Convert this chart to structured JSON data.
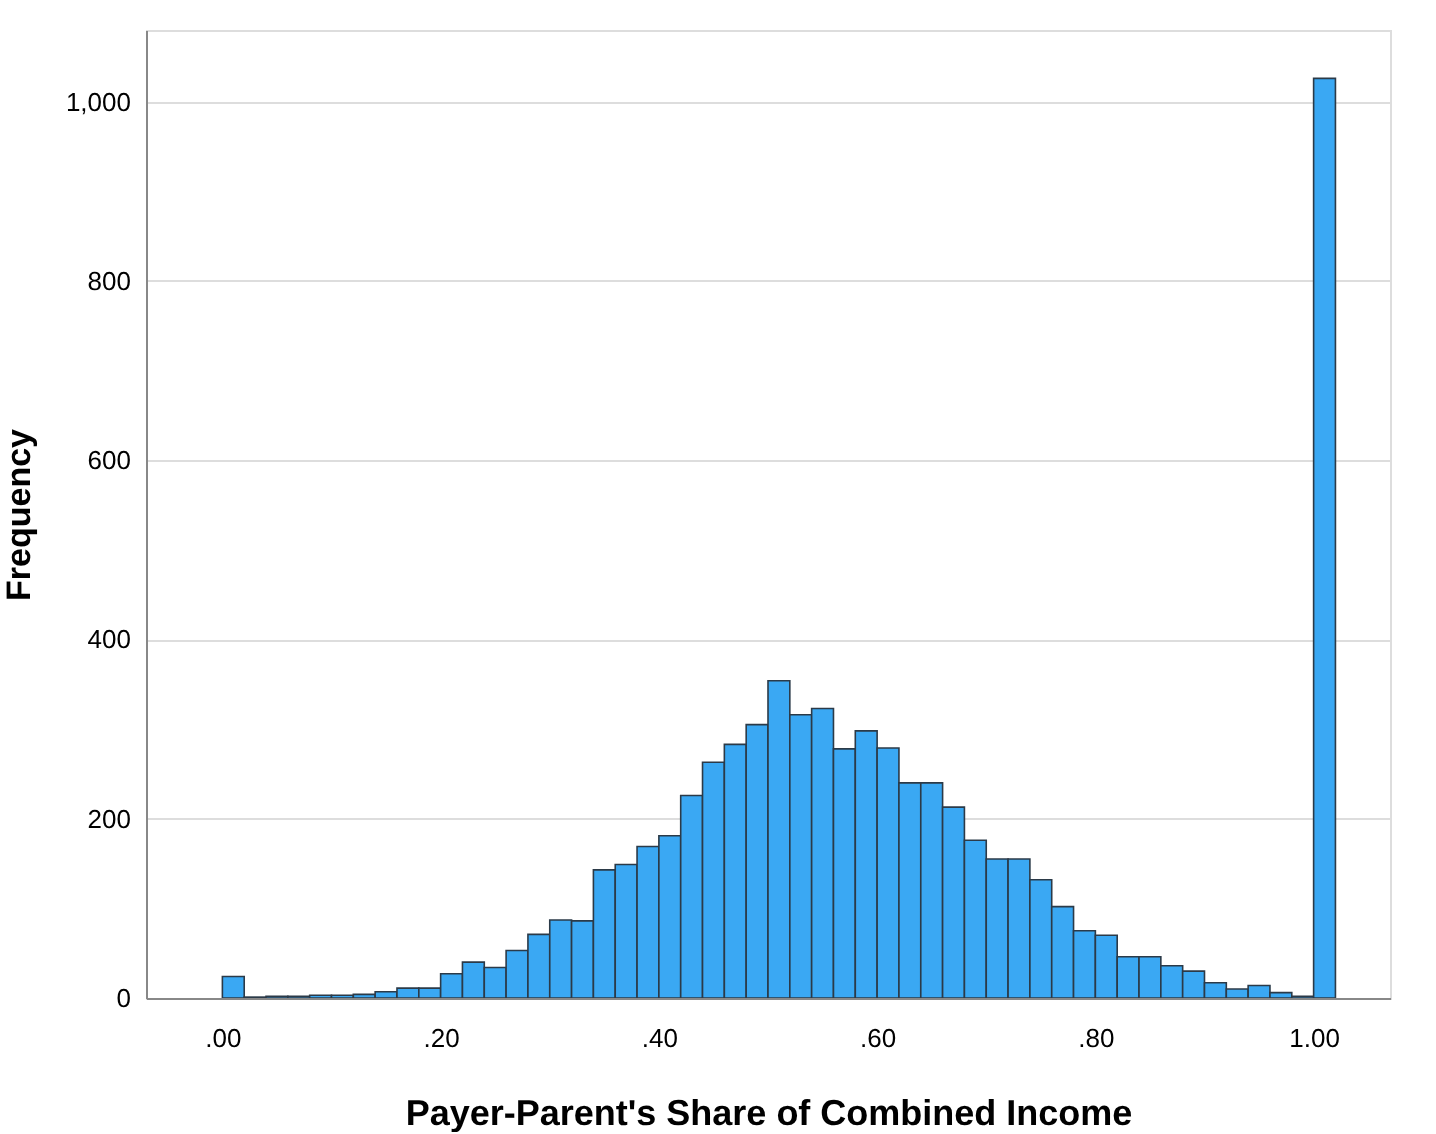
{
  "chart_data": {
    "type": "histogram",
    "xlabel": "Payer-Parent's Share of Combined Income",
    "ylabel": "Frequency",
    "bins": [
      0,
      0.02,
      0.04,
      0.06,
      0.08,
      0.1,
      0.12,
      0.14,
      0.16,
      0.18,
      0.2,
      0.22,
      0.24,
      0.26,
      0.28,
      0.3,
      0.32,
      0.34,
      0.36,
      0.38,
      0.4,
      0.42,
      0.44,
      0.46,
      0.48,
      0.5,
      0.52,
      0.54,
      0.56,
      0.58,
      0.6,
      0.62,
      0.64,
      0.66,
      0.68,
      0.7,
      0.72,
      0.74,
      0.76,
      0.78,
      0.8,
      0.82,
      0.84,
      0.86,
      0.88,
      0.9,
      0.92,
      0.94,
      0.96,
      0.98,
      1.0,
      1.02
    ],
    "values": [
      24,
      1,
      2,
      2,
      3,
      3,
      4,
      7,
      11,
      11,
      27,
      40,
      34,
      53,
      71,
      87,
      86,
      143,
      149,
      169,
      181,
      226,
      263,
      283,
      305,
      354,
      316,
      323,
      278,
      298,
      279,
      240,
      240,
      213,
      176,
      155,
      155,
      132,
      102,
      75,
      70,
      46,
      46,
      36,
      30,
      17,
      10,
      14,
      6,
      2,
      1026
    ],
    "color": "#3aa8f3",
    "xlim": [
      -0.07,
      1.07
    ],
    "xticks": [
      {
        "value": 0,
        "label": ".00"
      },
      {
        "value": 0.2,
        "label": ".20"
      },
      {
        "value": 0.4,
        "label": ".40"
      },
      {
        "value": 0.6,
        "label": ".60"
      },
      {
        "value": 0.8,
        "label": ".80"
      },
      {
        "value": 1.0,
        "label": "1.00"
      }
    ],
    "ylim": [
      0,
      1080
    ],
    "yticks": [
      0,
      200,
      400,
      600,
      800,
      {
        "value": 1000,
        "label": "1,000"
      }
    ],
    "grid": "y"
  }
}
